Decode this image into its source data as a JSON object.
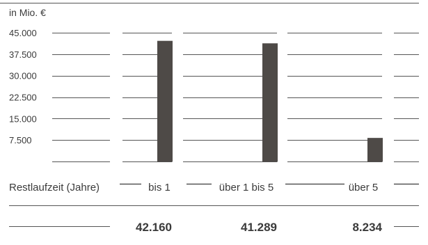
{
  "chart_data": {
    "type": "bar",
    "unit_label": "in Mio. €",
    "category_axis_label": "Restlaufzeit (Jahre)",
    "categories": [
      "bis 1",
      "über 1 bis 5",
      "über 5"
    ],
    "values": [
      42160,
      41289,
      8234
    ],
    "value_labels": [
      "42.160",
      "41.289",
      "8.234"
    ],
    "yticks": [
      "45.000",
      "37.500",
      "30.000",
      "22.500",
      "15.000",
      "7.500"
    ],
    "ytick_values": [
      45000,
      37500,
      30000,
      22500,
      15000,
      7500
    ],
    "ylim": [
      0,
      45000
    ],
    "grid": true,
    "bar_color": "#4e4a47",
    "line_color": "#555555"
  }
}
